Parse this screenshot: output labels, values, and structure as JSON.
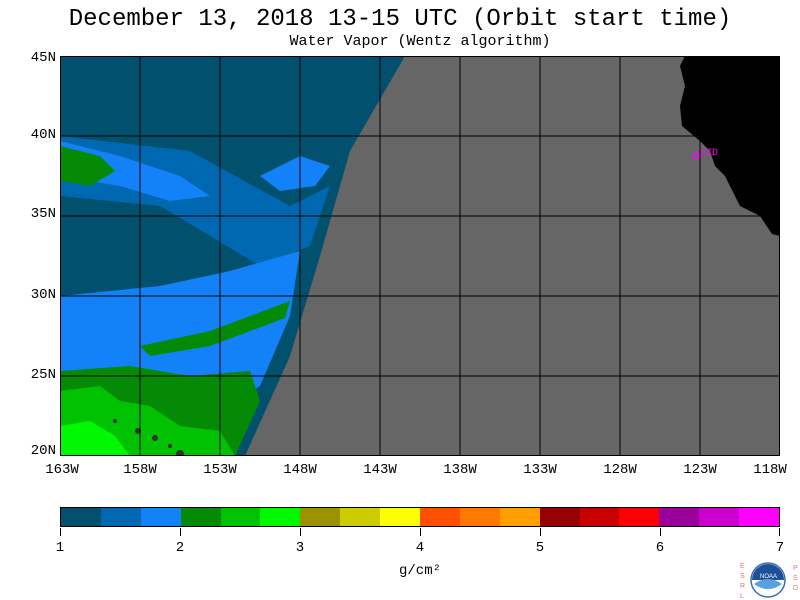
{
  "title": "December 13, 2018  13-15 UTC  (Orbit start time)",
  "subtitle": "Water Vapor (Wentz algorithm)",
  "lat_labels": [
    "45N",
    "40N",
    "35N",
    "30N",
    "25N",
    "20N"
  ],
  "lon_labels": [
    "163W",
    "158W",
    "153W",
    "148W",
    "143W",
    "138W",
    "133W",
    "128W",
    "123W",
    "118W"
  ],
  "station_label": "CZD",
  "legend": {
    "unit": "g/cm²",
    "ticks": [
      "1",
      "2",
      "3",
      "4",
      "5",
      "6",
      "7"
    ],
    "colors": [
      "#00506e",
      "#0068b0",
      "#1382f8",
      "#058a05",
      "#00c200",
      "#00f800",
      "#9a9200",
      "#cccc00",
      "#ffff00",
      "#ff5000",
      "#ff7800",
      "#ffa000",
      "#960000",
      "#c80000",
      "#ff0000",
      "#9a009a",
      "#cc00cc",
      "#ff00ff"
    ]
  },
  "logo": {
    "left_letters": "ESRL",
    "right_letters": "PSD",
    "center": "NOAA"
  }
}
